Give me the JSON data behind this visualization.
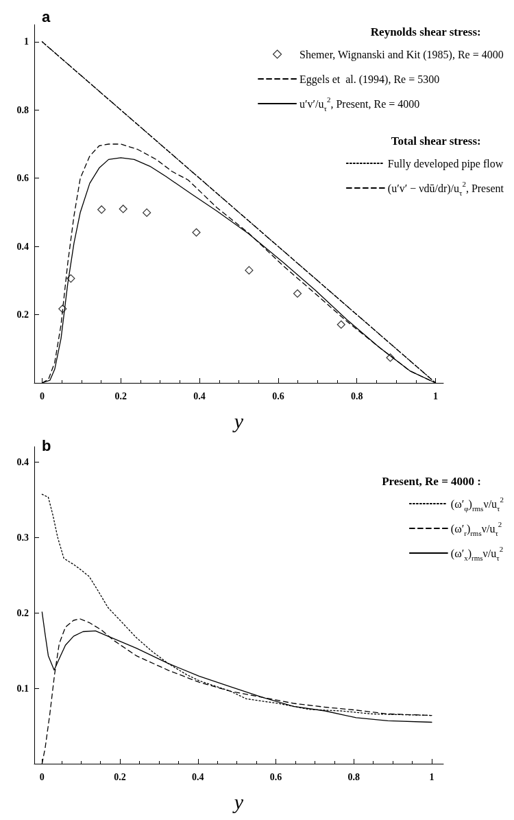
{
  "chart_data": [
    {
      "type": "line",
      "title": "a",
      "xlabel": "y",
      "annotations": [
        "Reynolds shear stress:",
        "Total shear stress:"
      ],
      "xlim": [
        -0.02,
        1.02
      ],
      "ylim": [
        0,
        1.05
      ],
      "xticks": [
        0,
        0.2,
        0.4,
        0.6,
        0.8,
        1
      ],
      "yticks": [
        0.2,
        0.4,
        0.6,
        0.8,
        1
      ],
      "legend": "top right",
      "series": [
        {
          "name": "Shemer, Wignanski and Kit (1985), Re = 4000",
          "type": "scatter",
          "marker": "diamond",
          "color": "#000000",
          "x": [
            0.052,
            0.073,
            0.151,
            0.206,
            0.266,
            0.392,
            0.526,
            0.649,
            0.76,
            0.885
          ],
          "values": [
            0.217,
            0.306,
            0.508,
            0.51,
            0.499,
            0.441,
            0.33,
            0.262,
            0.171,
            0.074
          ]
        },
        {
          "name": "Eggels et  al. (1994), Re = 5300",
          "line_style": "dashed",
          "color": "#000000",
          "x": [
            0,
            0.016,
            0.032,
            0.048,
            0.065,
            0.081,
            0.097,
            0.121,
            0.145,
            0.169,
            0.2,
            0.242,
            0.29,
            0.33,
            0.371,
            0.444,
            0.524,
            0.613,
            0.694,
            0.774,
            0.855,
            0.935,
            1
          ],
          "values": [
            0,
            0.01,
            0.06,
            0.17,
            0.35,
            0.49,
            0.6,
            0.665,
            0.695,
            0.7,
            0.7,
            0.685,
            0.655,
            0.62,
            0.595,
            0.514,
            0.44,
            0.343,
            0.262,
            0.181,
            0.106,
            0.035,
            0
          ]
        },
        {
          "name": "u′v′/u$_{τ}$$^{2}$, Present, Re = 4000",
          "line_style": "solid",
          "color": "#000000",
          "x": [
            0,
            0.02,
            0.032,
            0.048,
            0.065,
            0.081,
            0.097,
            0.121,
            0.145,
            0.169,
            0.2,
            0.234,
            0.274,
            0.315,
            0.379,
            0.444,
            0.524,
            0.613,
            0.694,
            0.774,
            0.855,
            0.935,
            1
          ],
          "values": [
            0,
            0.008,
            0.04,
            0.13,
            0.29,
            0.41,
            0.5,
            0.585,
            0.63,
            0.655,
            0.66,
            0.655,
            0.635,
            0.605,
            0.554,
            0.504,
            0.438,
            0.353,
            0.272,
            0.186,
            0.106,
            0.035,
            0
          ]
        },
        {
          "name": "Fully developed pipe flow",
          "line_style": "dotted",
          "color": "#000000",
          "x": [
            0,
            1
          ],
          "values": [
            1,
            0
          ]
        },
        {
          "name": "(u′v′ − νdū/dr)/u$_{τ}$$^{2}$, Present",
          "line_style": "dashed",
          "color": "#000000",
          "x": [
            0,
            0.25,
            0.5,
            0.75,
            1
          ],
          "values": [
            1,
            0.75,
            0.5,
            0.25,
            0
          ]
        }
      ]
    },
    {
      "type": "line",
      "title": "b",
      "xlabel": "y",
      "legend_title": "Present, Re = 4000 :",
      "xlim": [
        -0.02,
        1.03
      ],
      "ylim": [
        0,
        0.42
      ],
      "xticks": [
        0,
        0.2,
        0.4,
        0.6,
        0.8,
        1
      ],
      "yticks": [
        0.1,
        0.2,
        0.3,
        0.4
      ],
      "legend": "top right",
      "series": [
        {
          "name": "(ω′$_{φ}$)$_{rms}$ν/u$_{τ}$$^{2}$",
          "line_style": "dotted",
          "color": "#000000",
          "x": [
            0,
            0.016,
            0.028,
            0.04,
            0.056,
            0.081,
            0.097,
            0.121,
            0.145,
            0.169,
            0.202,
            0.242,
            0.282,
            0.323,
            0.371,
            0.403,
            0.484,
            0.524,
            0.605,
            0.685,
            0.766,
            0.847,
            1
          ],
          "values": [
            0.357,
            0.353,
            0.329,
            0.3,
            0.272,
            0.264,
            0.258,
            0.248,
            0.228,
            0.207,
            0.189,
            0.167,
            0.149,
            0.133,
            0.118,
            0.11,
            0.096,
            0.086,
            0.08,
            0.072,
            0.07,
            0.066,
            0.064
          ]
        },
        {
          "name": "(ω′$_{r}$)$_{rms}$ν/u$_{τ}$$^{2}$",
          "line_style": "dashed",
          "color": "#000000",
          "x": [
            0,
            0.008,
            0.02,
            0.032,
            0.044,
            0.06,
            0.081,
            0.097,
            0.121,
            0.153,
            0.185,
            0.242,
            0.323,
            0.403,
            0.484,
            0.565,
            0.645,
            0.726,
            0.806,
            0.887,
            1
          ],
          "values": [
            0,
            0.021,
            0.066,
            0.118,
            0.159,
            0.181,
            0.19,
            0.192,
            0.187,
            0.177,
            0.163,
            0.143,
            0.124,
            0.108,
            0.096,
            0.088,
            0.08,
            0.075,
            0.071,
            0.066,
            0.064
          ]
        },
        {
          "name": "(ω′$_{x}$)$_{rms}$ν/u$_{τ}$$^{2}$",
          "line_style": "solid",
          "color": "#000000",
          "x": [
            0,
            0.008,
            0.016,
            0.031,
            0.044,
            0.06,
            0.081,
            0.105,
            0.137,
            0.169,
            0.242,
            0.323,
            0.403,
            0.484,
            0.565,
            0.645,
            0.726,
            0.806,
            0.887,
            1
          ],
          "values": [
            0.201,
            0.171,
            0.143,
            0.124,
            0.139,
            0.157,
            0.169,
            0.175,
            0.176,
            0.169,
            0.153,
            0.133,
            0.116,
            0.102,
            0.088,
            0.076,
            0.07,
            0.061,
            0.057,
            0.055
          ]
        }
      ]
    }
  ]
}
